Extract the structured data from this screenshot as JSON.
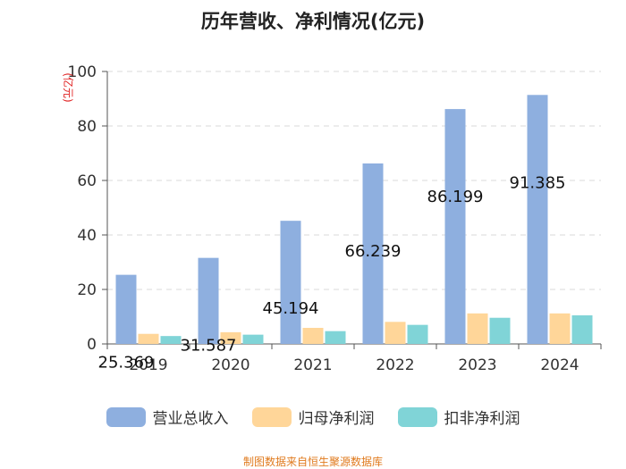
{
  "chart_data": {
    "type": "bar",
    "title": "历年营收、净利情况(亿元)",
    "ylabel": "(亿元)",
    "xlabel": "",
    "ylim": [
      0,
      100
    ],
    "yticks": [
      0,
      20,
      40,
      60,
      80,
      100
    ],
    "categories": [
      "2019",
      "2020",
      "2021",
      "2022",
      "2023",
      "2024"
    ],
    "series": [
      {
        "name": "营业总收入",
        "color": "#8eafdf",
        "values": [
          25.369,
          31.587,
          45.194,
          66.239,
          86.199,
          91.385
        ],
        "labels": [
          "25.369",
          "31.587",
          "45.194",
          "66.239",
          "86.199",
          "91.385"
        ]
      },
      {
        "name": "归母净利润",
        "color": "#ffd699",
        "values": [
          3.7,
          4.3,
          5.9,
          8.1,
          11.2,
          11.2
        ]
      },
      {
        "name": "扣非净利润",
        "color": "#80d4d7",
        "values": [
          2.9,
          3.4,
          4.7,
          7.0,
          9.6,
          10.5
        ]
      }
    ],
    "grid": true,
    "legend_position": "bottom"
  },
  "footer": "制图数据来自恒生聚源数据库"
}
